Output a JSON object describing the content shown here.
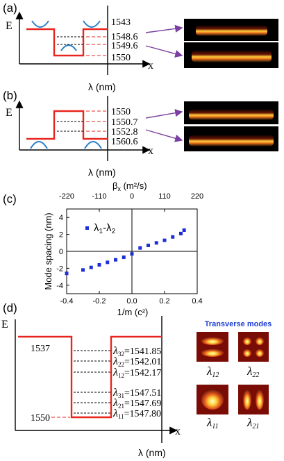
{
  "panels": {
    "a": {
      "tag": "(a)",
      "energy_axis": "E",
      "position_axis": "x",
      "wavelength_axis": "λ (nm)",
      "levels": [
        "1543",
        "1548.6",
        "1549.6",
        "1550"
      ]
    },
    "b": {
      "tag": "(b)",
      "energy_axis": "E",
      "position_axis": "x",
      "wavelength_axis": "λ (nm)",
      "levels": [
        "1550",
        "1550.7",
        "1552.8",
        "1560.6"
      ]
    },
    "c": {
      "tag": "(c)",
      "top_axis_label_main": "β",
      "top_axis_label_sub": "x",
      "top_axis_label_unit": " (m²/s)",
      "top_ticks": [
        "-220",
        "-110",
        "0",
        "110",
        "220"
      ]
    },
    "d": {
      "tag": "(d)",
      "energy_axis": "E",
      "position_axis": "x",
      "wavelength_axis": "λ (nm)",
      "well_top": "1537",
      "well_bottom": "1550",
      "levels": [
        {
          "sym": "λ",
          "sub": "32",
          "value": "=1541.85"
        },
        {
          "sym": "λ",
          "sub": "22",
          "value": "=1542.01"
        },
        {
          "sym": "λ",
          "sub": "12",
          "value": "=1542.17"
        },
        {
          "sym": "λ",
          "sub": "31",
          "value": "=1547.51"
        },
        {
          "sym": "λ",
          "sub": "21",
          "value": "=1547.69"
        },
        {
          "sym": "λ",
          "sub": "11",
          "value": "=1547.80"
        }
      ],
      "modes_title": "Transverse modes",
      "mode_labels": [
        {
          "sym": "λ",
          "sub": "12"
        },
        {
          "sym": "λ",
          "sub": "22"
        },
        {
          "sym": "λ",
          "sub": "11"
        },
        {
          "sym": "λ",
          "sub": "21"
        }
      ]
    }
  },
  "colors": {
    "well": "#e8261f",
    "dispersion": "#2a7fc8",
    "marker": "#1f2fd6",
    "arrow": "#7a3fa0",
    "title_blue": "#1f3fd8"
  },
  "chart_data": {
    "type": "scatter",
    "xlabel": "1/m (c²)",
    "ylabel": "Mode spacing (nm)",
    "xlim": [
      -0.4,
      0.4
    ],
    "ylim": [
      -5,
      5
    ],
    "x_ticks": [
      "-0.4",
      "-0.2",
      "0.0",
      "0.2",
      "0.4"
    ],
    "y_ticks": [
      "4",
      "2",
      "0",
      "-2",
      "-4"
    ],
    "series": [
      {
        "name": "λ1-λ2",
        "x": [
          -0.4,
          -0.3,
          -0.25,
          -0.2,
          -0.15,
          -0.1,
          -0.05,
          0.0,
          0.05,
          0.1,
          0.15,
          0.2,
          0.25,
          0.3,
          0.32
        ],
        "y": [
          -2.6,
          -2.2,
          -1.9,
          -1.6,
          -1.3,
          -1.0,
          -0.7,
          -0.3,
          0.4,
          0.7,
          1.0,
          1.3,
          1.7,
          2.1,
          2.5
        ],
        "legend_main": "λ",
        "legend_sub1": "1",
        "legend_mid": "-λ",
        "legend_sub2": "2"
      }
    ]
  }
}
